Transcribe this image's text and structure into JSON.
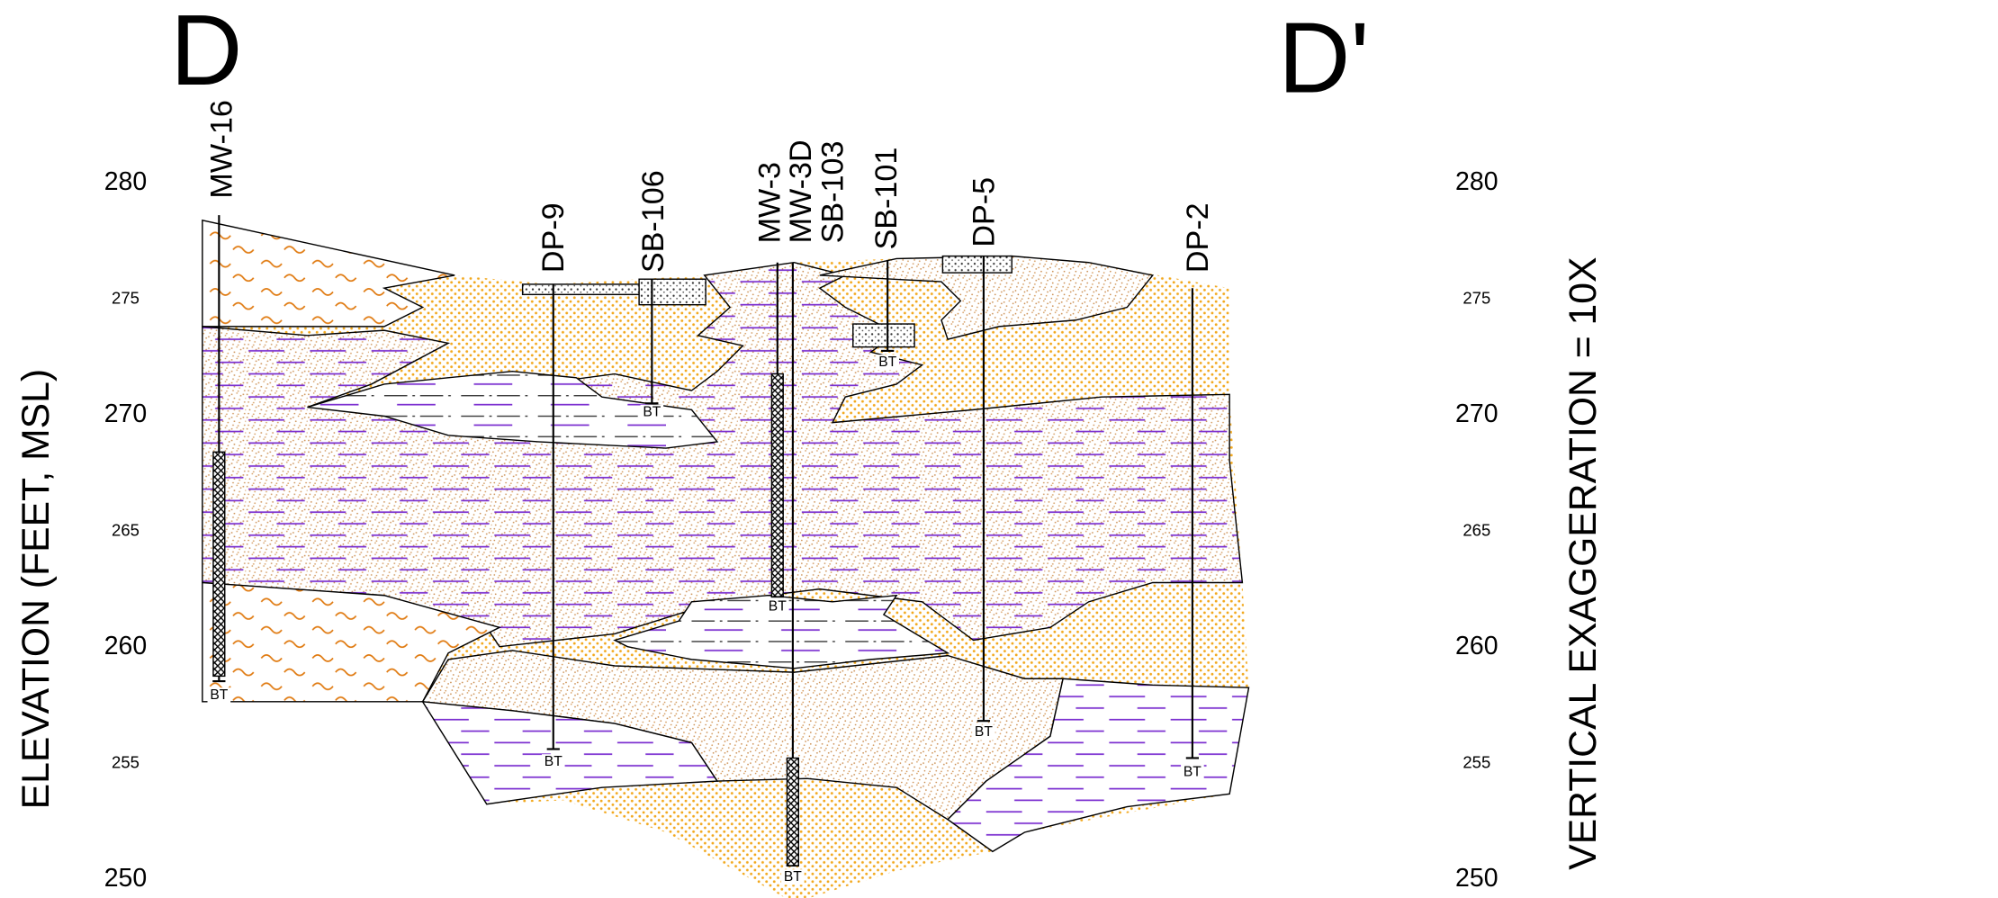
{
  "section": {
    "start_label": "D",
    "end_label": "D'"
  },
  "axis": {
    "title": "ELEVATION (FEET, MSL)",
    "ticks": [
      280,
      275,
      270,
      265,
      260,
      255,
      250
    ]
  },
  "note": "VERTICAL EXAGGERATION = 10X",
  "wells": [
    {
      "name": "MW-16",
      "bottom_label": "BT"
    },
    {
      "name": "DP-9",
      "bottom_label": "BT"
    },
    {
      "name": "SB-106",
      "bottom_label": "BT"
    },
    {
      "name": "MW-3",
      "bottom_label": "BT"
    },
    {
      "name": "MW-3D",
      "bottom_label": "BT"
    },
    {
      "name": "SB-103"
    },
    {
      "name": "SB-101",
      "bottom_label": "BT"
    },
    {
      "name": "DP-5",
      "bottom_label": "BT"
    },
    {
      "name": "DP-2",
      "bottom_label": "BT"
    }
  ]
}
